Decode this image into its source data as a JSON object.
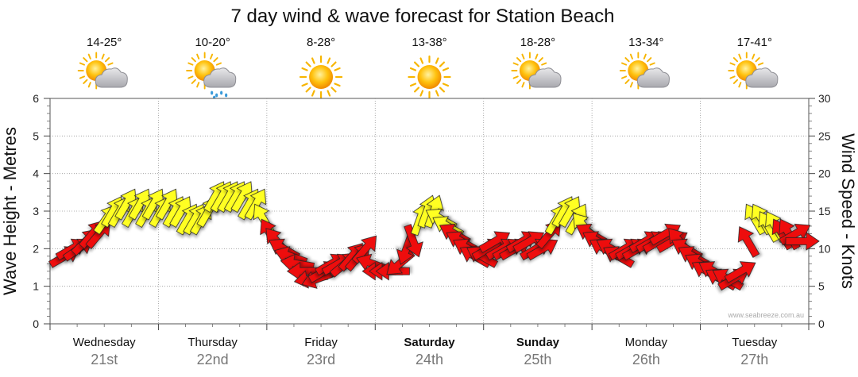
{
  "chart_data": {
    "type": "line",
    "title": "7 day wind & wave forecast for Station Beach",
    "ylabel_left": "Wave Height - Metres",
    "ylabel_right": "Wind Speed - Knots",
    "left_ticks": [
      "0",
      "1",
      "2",
      "3",
      "4",
      "5",
      "6"
    ],
    "right_ticks": [
      "0",
      "5",
      "10",
      "15",
      "20",
      "25",
      "30"
    ],
    "ylim_left": [
      0,
      6
    ],
    "ylim_right": [
      0,
      30
    ],
    "grid": true,
    "watermark": "www.seabreeze.com.au",
    "days": [
      {
        "name": "Wednesday",
        "date": "21st",
        "temp": "14-25°",
        "icon": "sun-cloud-icon",
        "bold": false
      },
      {
        "name": "Thursday",
        "date": "22nd",
        "temp": "10-20°",
        "icon": "sun-rain-icon",
        "bold": false
      },
      {
        "name": "Friday",
        "date": "23rd",
        "temp": "8-28°",
        "icon": "sun-icon",
        "bold": false
      },
      {
        "name": "Saturday",
        "date": "24th",
        "temp": "13-38°",
        "icon": "sun-icon",
        "bold": true
      },
      {
        "name": "Sunday",
        "date": "25th",
        "temp": "18-28°",
        "icon": "sun-cloud-icon",
        "bold": true
      },
      {
        "name": "Monday",
        "date": "26th",
        "temp": "13-34°",
        "icon": "sun-cloud-icon",
        "bold": false
      },
      {
        "name": "Tuesday",
        "date": "27th",
        "temp": "17-41°",
        "icon": "sun-cloud-icon",
        "bold": false
      }
    ],
    "colors": {
      "moderate": "#ffff22",
      "strong": "#ee1111"
    },
    "series": [
      {
        "values_knots": [
          9,
          10,
          10,
          11,
          12,
          12,
          14,
          15,
          15,
          16,
          15,
          16,
          15,
          16,
          15,
          16,
          15,
          15,
          14,
          14,
          14,
          15,
          17,
          17,
          17,
          17,
          17,
          16,
          16,
          14,
          12,
          11,
          10,
          9,
          8,
          7,
          6,
          6,
          7,
          8,
          8,
          8,
          9,
          9,
          10,
          8,
          7,
          7,
          7,
          8,
          10,
          11,
          14,
          15,
          15,
          14,
          13,
          12,
          11,
          10,
          9,
          9,
          10,
          11,
          10,
          10,
          10,
          11,
          11,
          10,
          10,
          12,
          14,
          15,
          15,
          14,
          13,
          12,
          11,
          10,
          10,
          9,
          10,
          10,
          10,
          11,
          11,
          11,
          12,
          11,
          11,
          10,
          9,
          8,
          7,
          7,
          6,
          6,
          6,
          7,
          11,
          14,
          14,
          13,
          13,
          12,
          12,
          12,
          11
        ],
        "directions_deg": [
          60,
          60,
          55,
          45,
          40,
          40,
          35,
          30,
          30,
          30,
          30,
          30,
          30,
          30,
          30,
          30,
          30,
          30,
          30,
          30,
          30,
          30,
          30,
          30,
          30,
          30,
          30,
          30,
          30,
          330,
          330,
          320,
          300,
          290,
          280,
          270,
          260,
          250,
          60,
          60,
          60,
          50,
          40,
          40,
          40,
          290,
          270,
          270,
          270,
          230,
          200,
          160,
          20,
          20,
          20,
          300,
          300,
          300,
          300,
          300,
          300,
          300,
          60,
          60,
          60,
          60,
          60,
          60,
          60,
          60,
          60,
          40,
          30,
          30,
          30,
          30,
          320,
          300,
          300,
          300,
          300,
          300,
          60,
          60,
          60,
          60,
          60,
          60,
          60,
          60,
          320,
          300,
          300,
          300,
          300,
          300,
          300,
          300,
          60,
          60,
          330,
          330,
          330,
          330,
          330,
          330,
          330,
          60,
          90
        ]
      }
    ]
  }
}
